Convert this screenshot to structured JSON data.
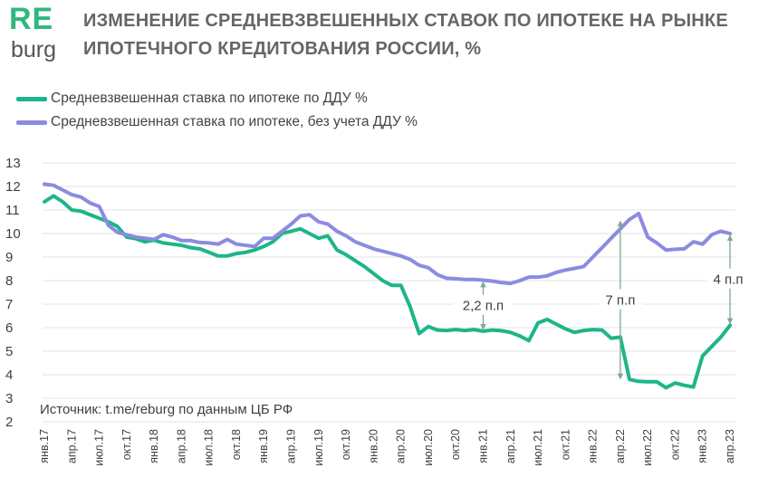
{
  "logo": {
    "top": "RE",
    "bottom": "burg"
  },
  "colors": {
    "series_green": "#1db58a",
    "series_blue": "#8b8ce0",
    "grid": "#e3e3e3",
    "annotation": "#7da98e",
    "text": "#404040"
  },
  "chart_data": {
    "type": "line",
    "title": "ИЗМЕНЕНИЕ СРЕДНЕВЗВЕШЕННЫХ СТАВОК ПО ИПОТЕКЕ НА РЫНКЕ ИПОТЕЧНОГО КРЕДИТОВАНИЯ РОССИИ, %",
    "ylim": [
      2,
      13
    ],
    "yticks": [
      "2",
      "3",
      "4",
      "5",
      "6",
      "7",
      "8",
      "9",
      "10",
      "11",
      "12",
      "13"
    ],
    "grid": true,
    "legend_position": "top-left",
    "x": [
      "янв.17",
      "фев.17",
      "мар.17",
      "апр.17",
      "май.17",
      "июн.17",
      "июл.17",
      "авг.17",
      "сен.17",
      "окт.17",
      "ноя.17",
      "дек.17",
      "янв.18",
      "фев.18",
      "мар.18",
      "апр.18",
      "май.18",
      "июн.18",
      "июл.18",
      "авг.18",
      "сен.18",
      "окт.18",
      "ноя.18",
      "дек.18",
      "янв.19",
      "фев.19",
      "мар.19",
      "апр.19",
      "май.19",
      "июн.19",
      "июл.19",
      "авг.19",
      "сен.19",
      "окт.19",
      "ноя.19",
      "дек.19",
      "янв.20",
      "фев.20",
      "мар.20",
      "апр.20",
      "май.20",
      "июн.20",
      "июл.20",
      "авг.20",
      "сен.20",
      "окт.20",
      "ноя.20",
      "дек.20",
      "янв.21",
      "фев.21",
      "мар.21",
      "апр.21",
      "май.21",
      "июн.21",
      "июл.21",
      "авг.21",
      "сен.21",
      "окт.21",
      "ноя.21",
      "дек.21",
      "янв.22",
      "фев.22",
      "мар.22",
      "апр.22",
      "май.22",
      "июн.22",
      "июл.22",
      "авг.22",
      "сен.22",
      "окт.22",
      "ноя.22",
      "дек.22",
      "янв.23",
      "фев.23",
      "мар.23",
      "апр.23"
    ],
    "xticks": [
      "янв.17",
      "апр.17",
      "июл.17",
      "окт.17",
      "янв.18",
      "апр.18",
      "июл.18",
      "окт.18",
      "янв.19",
      "апр.19",
      "июл.19",
      "окт.19",
      "янв.20",
      "апр.20",
      "июл.20",
      "окт.20",
      "янв.21",
      "апр.21",
      "июл.21",
      "окт.21",
      "янв.22",
      "апр.22",
      "июл.22",
      "окт.22",
      "янв.23",
      "апр.23"
    ],
    "series": [
      {
        "name": "Средневзвешенная ставка по ипотеке по ДДУ %",
        "color": "#1db58a",
        "values": [
          11.35,
          11.6,
          11.35,
          11.0,
          10.95,
          10.8,
          10.65,
          10.5,
          10.3,
          9.85,
          9.78,
          9.65,
          9.72,
          9.6,
          9.55,
          9.5,
          9.4,
          9.35,
          9.2,
          9.05,
          9.05,
          9.15,
          9.2,
          9.3,
          9.45,
          9.65,
          10.0,
          10.1,
          10.2,
          10.0,
          9.8,
          9.9,
          9.3,
          9.1,
          8.85,
          8.6,
          8.3,
          8.0,
          7.8,
          7.8,
          6.9,
          5.75,
          6.05,
          5.9,
          5.88,
          5.92,
          5.88,
          5.92,
          5.85,
          5.9,
          5.87,
          5.8,
          5.65,
          5.45,
          6.2,
          6.35,
          6.15,
          5.95,
          5.8,
          5.88,
          5.92,
          5.9,
          5.55,
          5.6,
          3.8,
          3.72,
          3.7,
          3.7,
          3.45,
          3.65,
          3.55,
          3.48,
          4.8,
          5.2,
          5.6,
          6.1
        ]
      },
      {
        "name": "Средневзвешенная ставка по ипотеке, без учета ДДУ %",
        "color": "#8b8ce0",
        "values": [
          12.1,
          12.05,
          11.85,
          11.65,
          11.55,
          11.3,
          11.15,
          10.35,
          10.05,
          9.95,
          9.85,
          9.8,
          9.75,
          9.95,
          9.85,
          9.7,
          9.7,
          9.62,
          9.6,
          9.55,
          9.75,
          9.55,
          9.5,
          9.45,
          9.8,
          9.8,
          10.1,
          10.4,
          10.75,
          10.8,
          10.5,
          10.4,
          10.1,
          9.9,
          9.65,
          9.5,
          9.35,
          9.25,
          9.15,
          9.05,
          8.9,
          8.65,
          8.55,
          8.25,
          8.1,
          8.08,
          8.05,
          8.05,
          8.02,
          7.98,
          7.92,
          7.88,
          8.0,
          8.15,
          8.15,
          8.2,
          8.35,
          8.45,
          8.52,
          8.6,
          9.0,
          9.4,
          9.8,
          10.2,
          10.6,
          10.85,
          9.85,
          9.6,
          9.3,
          9.33,
          9.35,
          9.65,
          9.55,
          9.95,
          10.1,
          10.0
        ]
      }
    ],
    "annotations": [
      {
        "label": "2,2 п.п",
        "x": "янв.21",
        "from": 5.85,
        "to": 8.02
      },
      {
        "label": "7 п.п",
        "x": "апр.22",
        "from": 3.75,
        "to": 10.6
      },
      {
        "label": "4 п.п",
        "x": "апр.23",
        "from": 6.1,
        "to": 10.0
      }
    ],
    "source": "Источник: t.me/reburg по данным ЦБ РФ"
  }
}
